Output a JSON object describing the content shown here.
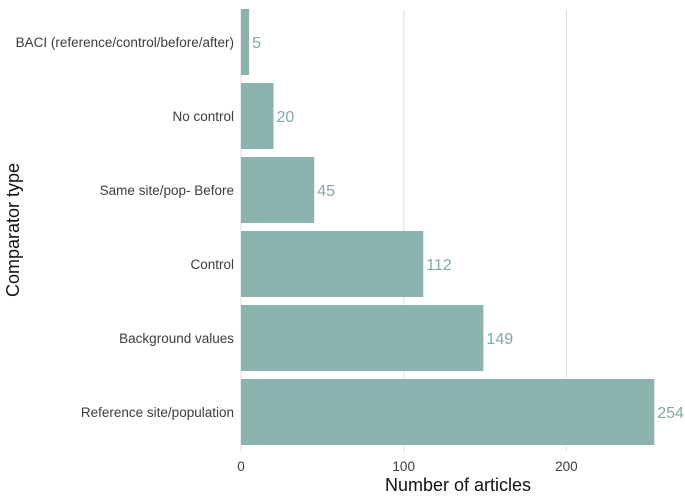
{
  "chart_data": {
    "type": "bar",
    "orientation": "horizontal",
    "title": "",
    "xlabel": "Number of articles",
    "ylabel": "Comparator type",
    "categories": [
      "BACI (reference/control/before/after)",
      "No control",
      "Same site/pop- Before",
      "Control",
      "Background values",
      "Reference site/population"
    ],
    "values": [
      5,
      20,
      45,
      112,
      149,
      254
    ],
    "value_labels": [
      "5",
      "20",
      "45",
      "112",
      "149",
      "254"
    ],
    "xticks": [
      0,
      100,
      200
    ],
    "xtick_labels": [
      "0",
      "100",
      "200"
    ],
    "xlim": [
      0,
      263
    ],
    "grid": true,
    "legend": "none",
    "colors": {
      "bar": "#8cb3ae",
      "value_label": "#7fa9a3",
      "grid": "#e3e3e3"
    }
  }
}
